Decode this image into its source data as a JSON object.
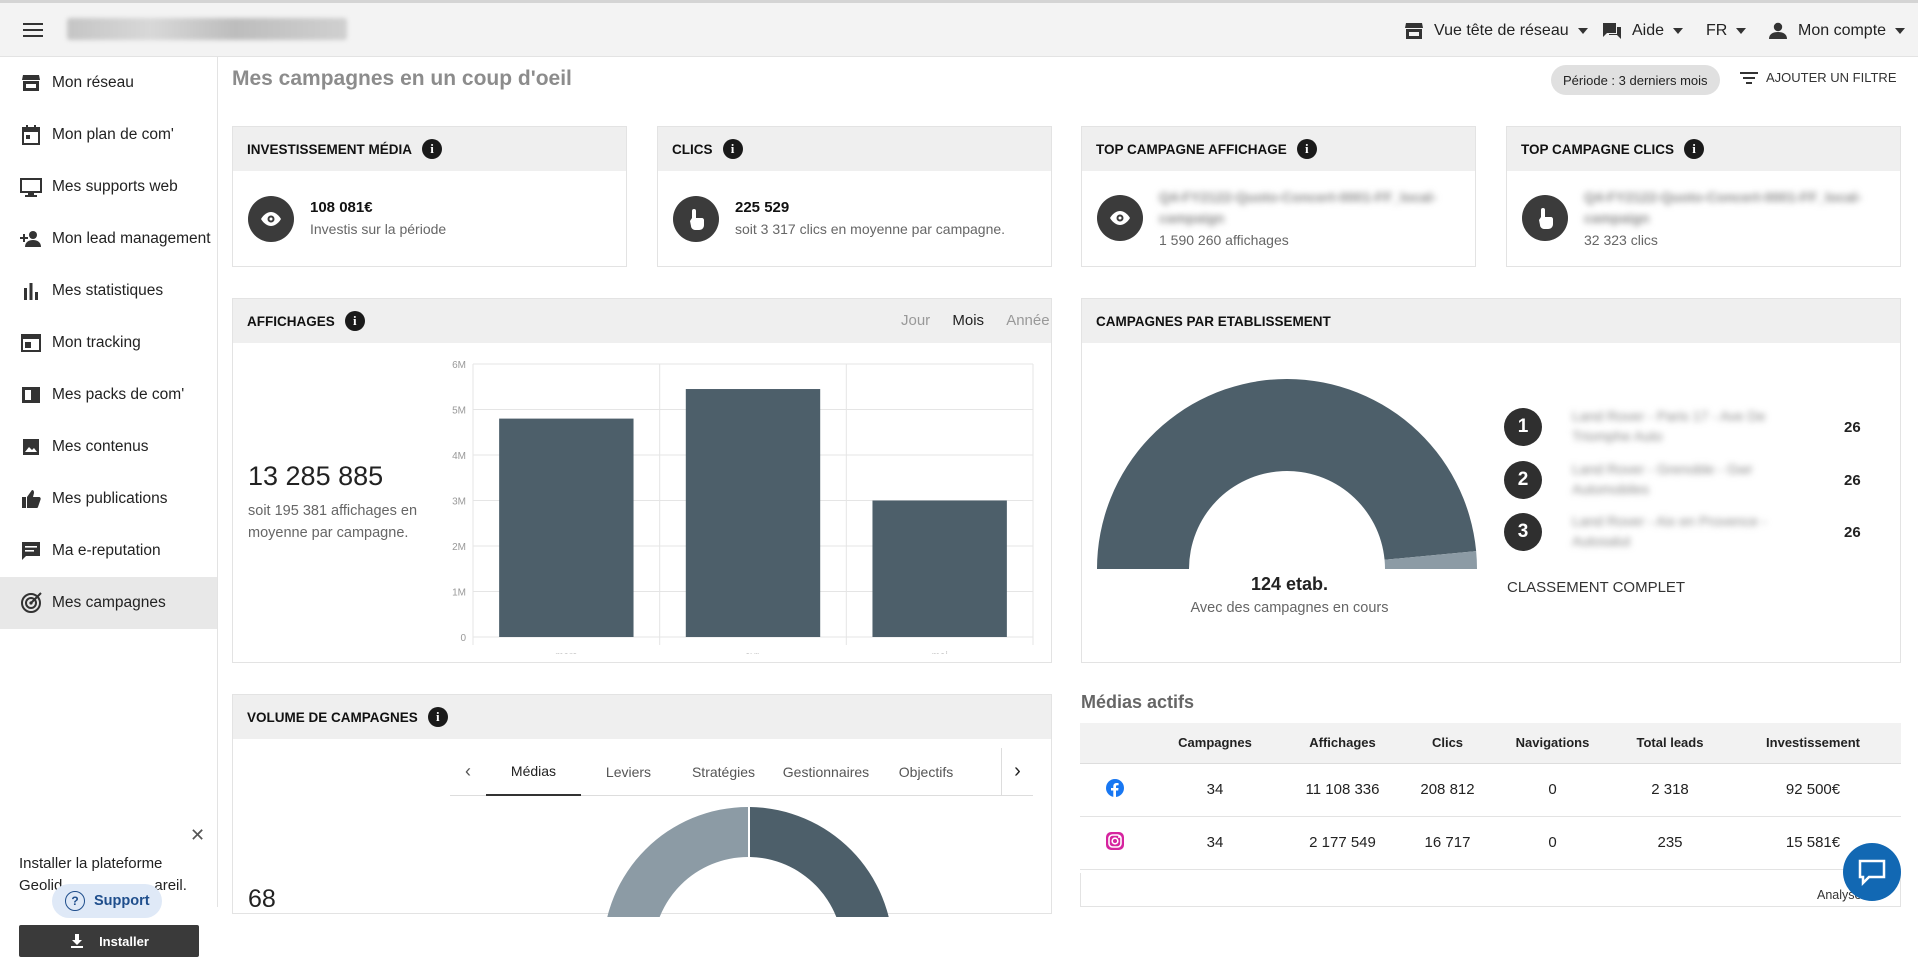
{
  "topbar": {
    "network_view": "Vue tête de réseau",
    "help": "Aide",
    "language": "FR",
    "account": "Mon compte"
  },
  "sidebar": {
    "items": [
      {
        "label": "Mon réseau",
        "icon": "store-icon"
      },
      {
        "label": "Mon plan de com'",
        "icon": "calendar-icon"
      },
      {
        "label": "Mes supports web",
        "icon": "monitor-icon"
      },
      {
        "label": "Mon lead management",
        "icon": "person-add-icon"
      },
      {
        "label": "Mes statistiques",
        "icon": "bar-chart-icon"
      },
      {
        "label": "Mon tracking",
        "icon": "browser-icon"
      },
      {
        "label": "Mes packs de com'",
        "icon": "pack-icon"
      },
      {
        "label": "Mes contenus",
        "icon": "image-icon"
      },
      {
        "label": "Mes publications",
        "icon": "thumb-up-icon"
      },
      {
        "label": "Ma e-reputation",
        "icon": "comment-icon"
      },
      {
        "label": "Mes campagnes",
        "icon": "target-icon",
        "active": true
      }
    ],
    "install": {
      "text_line1": "Installer la plateforme",
      "text_line2_start": "Geolid",
      "text_line2_end": "areil.",
      "support": "Support",
      "button": "Installer"
    }
  },
  "header": {
    "title": "Mes campagnes en un coup d'oeil",
    "period": "Période : 3 derniers mois",
    "add_filter": "AJOUTER UN FILTRE"
  },
  "kpis": {
    "invest": {
      "title": "INVESTISSEMENT MÉDIA",
      "value": "108 081€",
      "sub": "Investis sur la période"
    },
    "clics": {
      "title": "CLICS",
      "value": "225 529",
      "sub": "soit 3 317 clics en moyenne par campagne."
    },
    "top_affichage": {
      "title": "TOP CAMPAGNE AFFICHAGE",
      "name": "Q4-FY2122-Quoto-Concert-0001-FF_local-campaign",
      "sub": "1 590 260 affichages"
    },
    "top_clics": {
      "title": "TOP CAMPAGNE CLICS",
      "name": "Q4-FY2122-Quoto-Concert-0001-FF_local-campaign",
      "sub": "32 323 clics"
    }
  },
  "affichages": {
    "title": "AFFICHAGES",
    "periods": [
      "Jour",
      "Mois",
      "Année"
    ],
    "total": "13 285 885",
    "sub": "soit 195 381 affichages en moyenne par campagne.",
    "axis_ticks": [
      "6M",
      "5M",
      "4M",
      "3M",
      "2M",
      "1M",
      "0"
    ]
  },
  "chart_data": {
    "type": "bar",
    "categories": [
      "mars",
      "avr.",
      "mai"
    ],
    "values": [
      4800000,
      5450000,
      3000000
    ],
    "ylim": [
      0,
      6000000
    ],
    "grid": true
  },
  "campagnes_etab": {
    "title": "CAMPAGNES PAR ETABLISSEMENT",
    "count": "124 etab.",
    "sub": "Avec des campagnes en cours",
    "full_ranking": "CLASSEMENT COMPLET",
    "gauge_fraction": 0.97,
    "ranking": [
      {
        "rank": "1",
        "name": "Land Rover - Paris 17 - Ave De Triomphe Auto",
        "count": "26"
      },
      {
        "rank": "2",
        "name": "Land Rover - Grenoble - Gwr Automobiles",
        "count": "26"
      },
      {
        "rank": "3",
        "name": "Land Rover - Aix en Provence - Autosalut",
        "count": "26"
      }
    ]
  },
  "volume": {
    "title": "VOLUME DE CAMPAGNES",
    "total": "68",
    "tabs": [
      "Médias",
      "Leviers",
      "Stratégies",
      "Gestionnaires",
      "Objectifs"
    ],
    "active_tab": "Médias"
  },
  "medias_actifs": {
    "title": "Médias actifs",
    "columns": [
      "",
      "Campagnes",
      "Affichages",
      "Clics",
      "Navigations",
      "Total leads",
      "Investissement"
    ],
    "rows": [
      {
        "icon": "facebook-icon",
        "campagnes": "34",
        "affichages": "11 108 336",
        "clics": "208 812",
        "navigations": "0",
        "leads": "2 318",
        "invest": "92 500€"
      },
      {
        "icon": "instagram-icon",
        "campagnes": "34",
        "affichages": "2 177 549",
        "clics": "16 717",
        "navigations": "0",
        "leads": "235",
        "invest": "15 581€"
      }
    ],
    "footer": "Analyse"
  },
  "colors": {
    "bar": "#4d5f6a",
    "accent": "#1268b3",
    "donut_light": "#8c9ba5"
  }
}
